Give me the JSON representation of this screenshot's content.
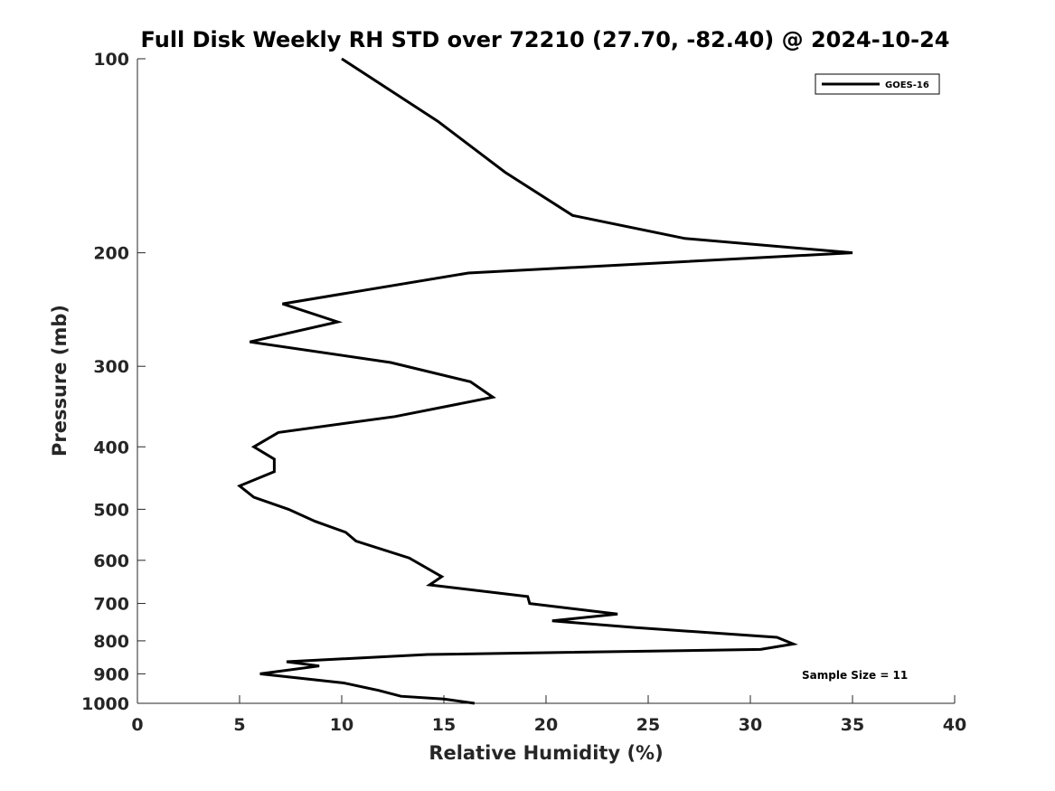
{
  "chart_data": {
    "type": "line",
    "title": "Full Disk Weekly RH STD over 72210 (27.70, -82.40) @ 2024-10-24",
    "xlabel": "Relative Humidity (%)",
    "ylabel": "Pressure (mb)",
    "xlim": [
      0,
      40
    ],
    "ylim": [
      100,
      1000
    ],
    "y_scale": "log",
    "y_reversed": true,
    "grid": false,
    "legend_position": "top-right",
    "x_ticks": [
      0,
      5,
      10,
      15,
      20,
      25,
      30,
      35,
      40
    ],
    "y_ticks": [
      100,
      200,
      300,
      400,
      500,
      600,
      700,
      800,
      900,
      1000
    ],
    "annotation": "Sample Size = 11",
    "series": [
      {
        "name": "GOES-16",
        "color": "#000000",
        "points": [
          [
            10.0,
            100
          ],
          [
            14.7,
            125
          ],
          [
            18.0,
            150
          ],
          [
            21.3,
            175
          ],
          [
            26.8,
            190
          ],
          [
            35.0,
            200
          ],
          [
            16.2,
            215
          ],
          [
            7.1,
            240
          ],
          [
            9.8,
            256
          ],
          [
            5.5,
            275
          ],
          [
            12.4,
            296
          ],
          [
            16.3,
            317
          ],
          [
            17.4,
            335
          ],
          [
            12.6,
            359
          ],
          [
            6.9,
            380
          ],
          [
            5.7,
            400
          ],
          [
            6.7,
            418
          ],
          [
            6.7,
            437
          ],
          [
            5.0,
            460
          ],
          [
            5.7,
            479
          ],
          [
            7.4,
            500
          ],
          [
            8.7,
            522
          ],
          [
            10.2,
            543
          ],
          [
            10.7,
            560
          ],
          [
            13.3,
            595
          ],
          [
            14.9,
            636
          ],
          [
            14.3,
            655
          ],
          [
            19.1,
            683
          ],
          [
            19.2,
            700
          ],
          [
            23.5,
            727
          ],
          [
            20.3,
            745
          ],
          [
            24.4,
            763
          ],
          [
            31.3,
            790
          ],
          [
            32.1,
            809
          ],
          [
            30.5,
            825
          ],
          [
            14.2,
            840
          ],
          [
            7.3,
            862
          ],
          [
            8.9,
            875
          ],
          [
            6.0,
            900
          ],
          [
            10.1,
            930
          ],
          [
            11.8,
            955
          ],
          [
            12.9,
            975
          ],
          [
            15.0,
            985
          ],
          [
            16.5,
            1000
          ]
        ]
      }
    ]
  }
}
